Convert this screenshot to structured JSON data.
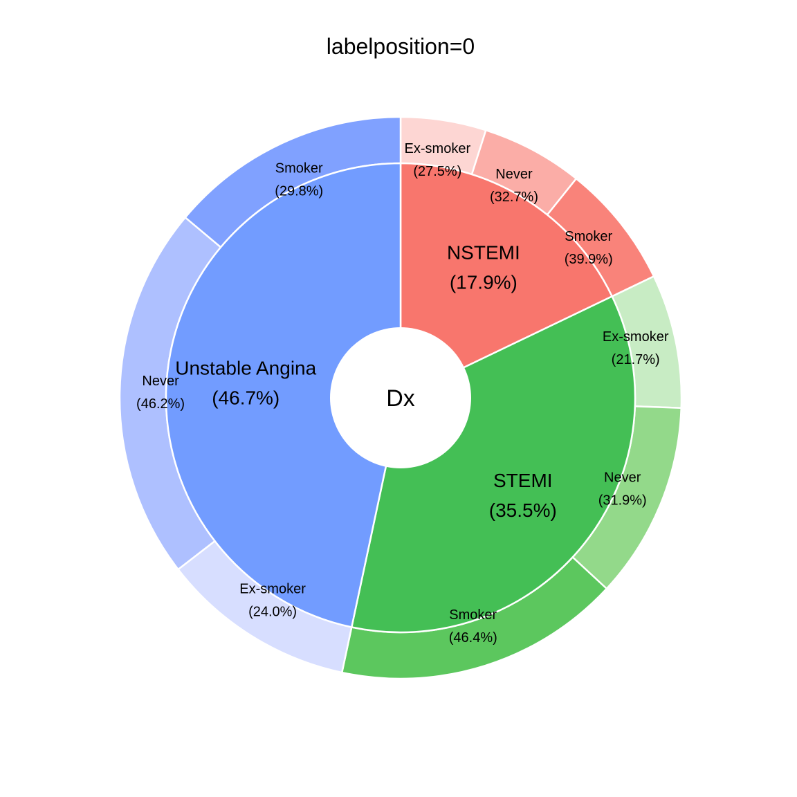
{
  "chart_data": {
    "type": "pie",
    "subtype": "donut-pie (PieDonut)",
    "title": "labelposition=0",
    "center_label": "Dx",
    "inner": [
      {
        "name": "NSTEMI",
        "percent": 17.9,
        "label": "NSTEMI",
        "pct_label": "(17.9%)",
        "color": "#F8766D"
      },
      {
        "name": "STEMI",
        "percent": 35.5,
        "label": "STEMI",
        "pct_label": "(35.5%)",
        "color": "#44BF55"
      },
      {
        "name": "Unstable Angina",
        "percent": 46.7,
        "label": "Unstable Angina",
        "pct_label": "(46.7%)",
        "color": "#729CFF"
      }
    ],
    "outer": [
      {
        "group": "NSTEMI",
        "name": "Ex-smoker",
        "percent": 27.5,
        "label": "Ex-smoker",
        "pct_label": "(27.5%)",
        "color": "#FDD6D3"
      },
      {
        "group": "NSTEMI",
        "name": "Never",
        "percent": 32.7,
        "label": "Never",
        "pct_label": "(32.7%)",
        "color": "#FBADA7"
      },
      {
        "group": "NSTEMI",
        "name": "Smoker",
        "percent": 39.9,
        "label": "Smoker",
        "pct_label": "(39.9%)",
        "color": "#F9837A"
      },
      {
        "group": "STEMI",
        "name": "Ex-smoker",
        "percent": 21.7,
        "label": "Ex-smoker",
        "pct_label": "(21.7%)",
        "color": "#C8ECC4"
      },
      {
        "group": "STEMI",
        "name": "Never",
        "percent": 31.9,
        "label": "Never",
        "pct_label": "(31.9%)",
        "color": "#93D98A"
      },
      {
        "group": "STEMI",
        "name": "Smoker",
        "percent": 46.4,
        "label": "Smoker",
        "pct_label": "(46.4%)",
        "color": "#5CC75E"
      },
      {
        "group": "Unstable Angina",
        "name": "Ex-smoker",
        "percent": 24.0,
        "label": "Ex-smoker",
        "pct_label": "(24.0%)",
        "color": "#D7DEFF"
      },
      {
        "group": "Unstable Angina",
        "name": "Never",
        "percent": 46.2,
        "label": "Never",
        "pct_label": "(46.2%)",
        "color": "#AEC0FF"
      },
      {
        "group": "Unstable Angina",
        "name": "Smoker",
        "percent": 29.8,
        "label": "Smoker",
        "pct_label": "(29.8%)",
        "color": "#80A1FF"
      }
    ]
  }
}
